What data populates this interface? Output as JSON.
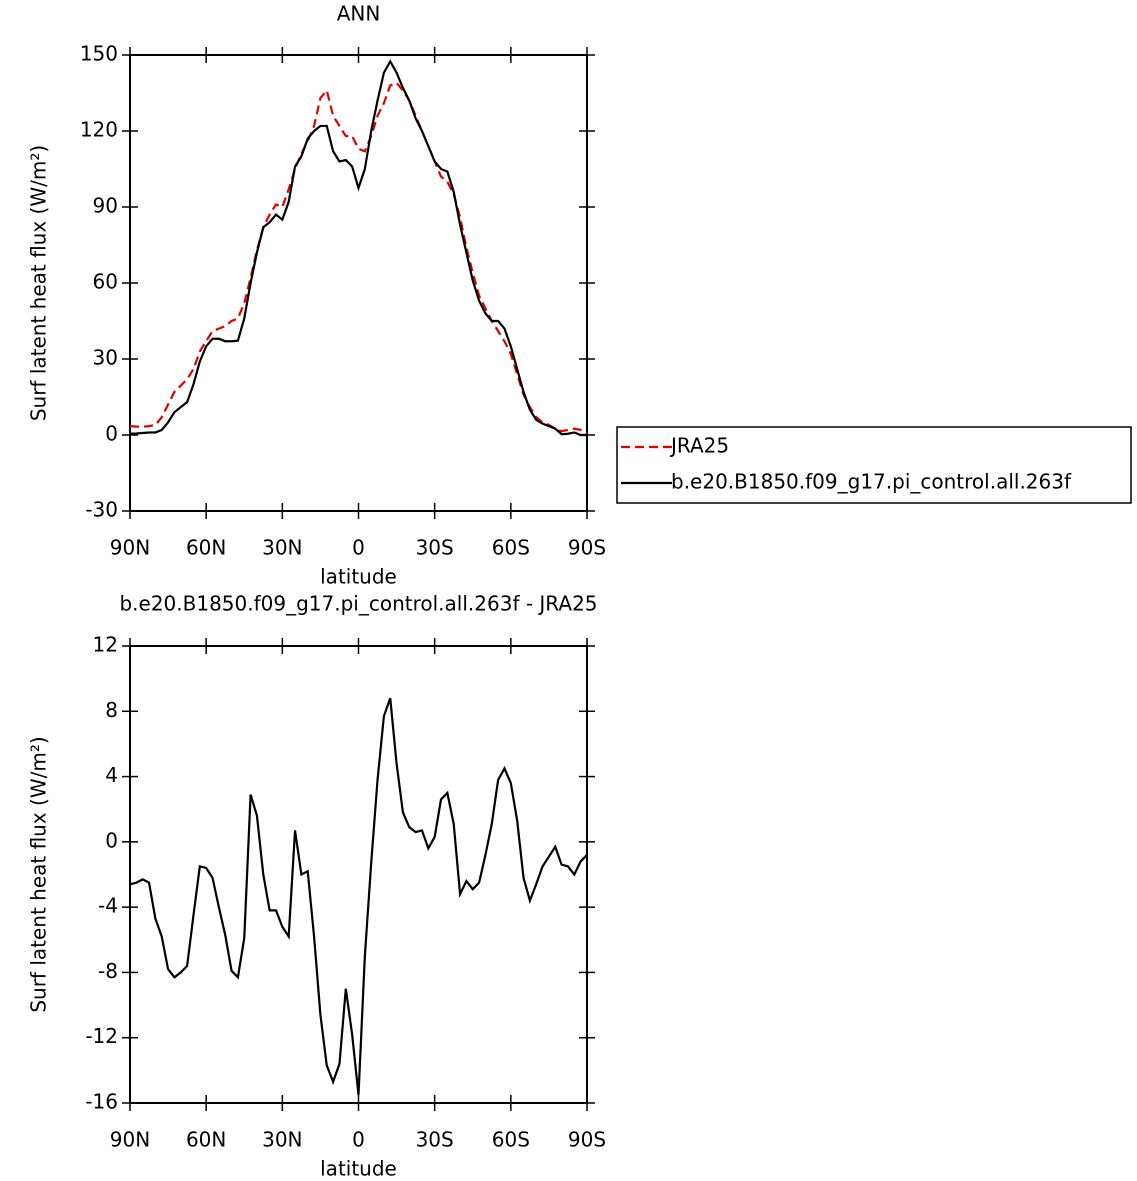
{
  "chart_data": [
    {
      "type": "line",
      "title": "ANN",
      "xlabel": "latitude",
      "ylabel": "Surf latent heat flux (W/m²)",
      "x": [
        90,
        87.5,
        85,
        82.5,
        80,
        77.5,
        75,
        72.5,
        70,
        67.5,
        65,
        62.5,
        60,
        57.5,
        55,
        52.5,
        50,
        47.5,
        45,
        42.5,
        40,
        37.5,
        35,
        32.5,
        30,
        27.5,
        25,
        22.5,
        20,
        17.5,
        15,
        12.5,
        10,
        7.5,
        5,
        2.5,
        0,
        -2.5,
        -5,
        -7.5,
        -10,
        -12.5,
        -15,
        -17.5,
        -20,
        -22.5,
        -25,
        -27.5,
        -30,
        -32.5,
        -35,
        -37.5,
        -40,
        -42.5,
        -45,
        -47.5,
        -50,
        -52.5,
        -55,
        -57.5,
        -60,
        -62.5,
        -65,
        -67.5,
        -70,
        -72.5,
        -75,
        -77.5,
        -80,
        -82.5,
        -85,
        -87.5,
        -90
      ],
      "xlim": [
        90,
        -90
      ],
      "xticks": [
        {
          "value": 90,
          "label": "90N"
        },
        {
          "value": 60,
          "label": "60N"
        },
        {
          "value": 30,
          "label": "30N"
        },
        0,
        {
          "value": -30,
          "label": "30S"
        },
        {
          "value": -60,
          "label": "60S"
        },
        {
          "value": -90,
          "label": "90S"
        }
      ],
      "ylim": [
        -30,
        150
      ],
      "yticks": [
        -30,
        0,
        30,
        60,
        90,
        120,
        150
      ],
      "series": [
        {
          "name": "JRA25",
          "color": "#e00000",
          "dash": true,
          "values": [
            3.5,
            3.3,
            3.3,
            3.5,
            4,
            7,
            12,
            17,
            19.5,
            22,
            26,
            33,
            37,
            41,
            42,
            43,
            45,
            46,
            52,
            62,
            73,
            82,
            87,
            91,
            90,
            97,
            105,
            111,
            116,
            122,
            133,
            136,
            126,
            122,
            118,
            118,
            113,
            112,
            118,
            126,
            131,
            138,
            139,
            136,
            132,
            126,
            120,
            114,
            108,
            102,
            100,
            95,
            86,
            74,
            64,
            55,
            50,
            45,
            41,
            37,
            32,
            24,
            16,
            11,
            7,
            5,
            4,
            2.5,
            1.5,
            2,
            2.5,
            2,
            0.5
          ]
        },
        {
          "name": "b.e20.B1850.f09_g17.pi_control.all.263f",
          "color": "#000000",
          "dash": false,
          "values": [
            0.5,
            0.6,
            0.8,
            1,
            1,
            2,
            5,
            9,
            11,
            13,
            20,
            29,
            35,
            38,
            38,
            37,
            37,
            37.2,
            46,
            60,
            72,
            82,
            84,
            87,
            85,
            92,
            106,
            110,
            117,
            120,
            122,
            122,
            112,
            108,
            108.5,
            106,
            97.5,
            105,
            120,
            132,
            143,
            147.5,
            143,
            137,
            132,
            125,
            120,
            114,
            108,
            105,
            104,
            96,
            83,
            72,
            61,
            53,
            48,
            45,
            45,
            42,
            35,
            26,
            17,
            10,
            6,
            4.5,
            3.5,
            2.5,
            0.3,
            0.5,
            1,
            0,
            0
          ]
        }
      ]
    },
    {
      "type": "line",
      "title": "b.e20.B1850.f09_g17.pi_control.all.263f - JRA25",
      "xlabel": "latitude",
      "ylabel": "Surf latent heat flux (W/m²)",
      "x": [
        90,
        87.5,
        85,
        82.5,
        80,
        77.5,
        75,
        72.5,
        70,
        67.5,
        65,
        62.5,
        60,
        57.5,
        55,
        52.5,
        50,
        47.5,
        45,
        42.5,
        40,
        37.5,
        35,
        32.5,
        30,
        27.5,
        25,
        22.5,
        20,
        17.5,
        15,
        12.5,
        10,
        7.5,
        5,
        2.5,
        0,
        -2.5,
        -5,
        -7.5,
        -10,
        -12.5,
        -15,
        -17.5,
        -20,
        -22.5,
        -25,
        -27.5,
        -30,
        -32.5,
        -35,
        -37.5,
        -40,
        -42.5,
        -45,
        -47.5,
        -50,
        -52.5,
        -55,
        -57.5,
        -60,
        -62.5,
        -65,
        -67.5,
        -70,
        -72.5,
        -75,
        -77.5,
        -80,
        -82.5,
        -85,
        -87.5,
        -90
      ],
      "xlim": [
        90,
        -90
      ],
      "xticks": [
        {
          "value": 90,
          "label": "90N"
        },
        {
          "value": 60,
          "label": "60N"
        },
        {
          "value": 30,
          "label": "30N"
        },
        0,
        {
          "value": -30,
          "label": "30S"
        },
        {
          "value": -60,
          "label": "60S"
        },
        {
          "value": -90,
          "label": "90S"
        }
      ],
      "ylim": [
        -16,
        12
      ],
      "yticks": [
        -16,
        -12,
        -8,
        -4,
        0,
        4,
        8,
        12
      ],
      "color": "#000000",
      "values": [
        -2.6,
        -2.5,
        -2.3,
        -2.5,
        -4.7,
        -5.8,
        -7.8,
        -8.3,
        -8,
        -7.6,
        -4.5,
        -1.5,
        -1.6,
        -2.2,
        -4,
        -5.7,
        -7.9,
        -8.3,
        -5.9,
        2.9,
        1.6,
        -2,
        -4.2,
        -4.2,
        -5.2,
        -5.8,
        0.7,
        -2,
        -1.8,
        -5.8,
        -10.6,
        -13.7,
        -14.7,
        -13.6,
        -9,
        -11.8,
        -15.5,
        -7,
        -1.3,
        3.8,
        7.7,
        8.8,
        4.8,
        1.8,
        0.9,
        0.6,
        0.7,
        -0.4,
        0.3,
        2.6,
        3,
        1.1,
        -3.2,
        -2.4,
        -2.9,
        -2.5,
        -0.8,
        1.1,
        3.8,
        4.5,
        3.6,
        1.3,
        -2.2,
        -3.6,
        -2.6,
        -1.5,
        -0.9,
        -0.3,
        -1.4,
        -1.5,
        -2,
        -1.2,
        -0.8
      ]
    }
  ]
}
